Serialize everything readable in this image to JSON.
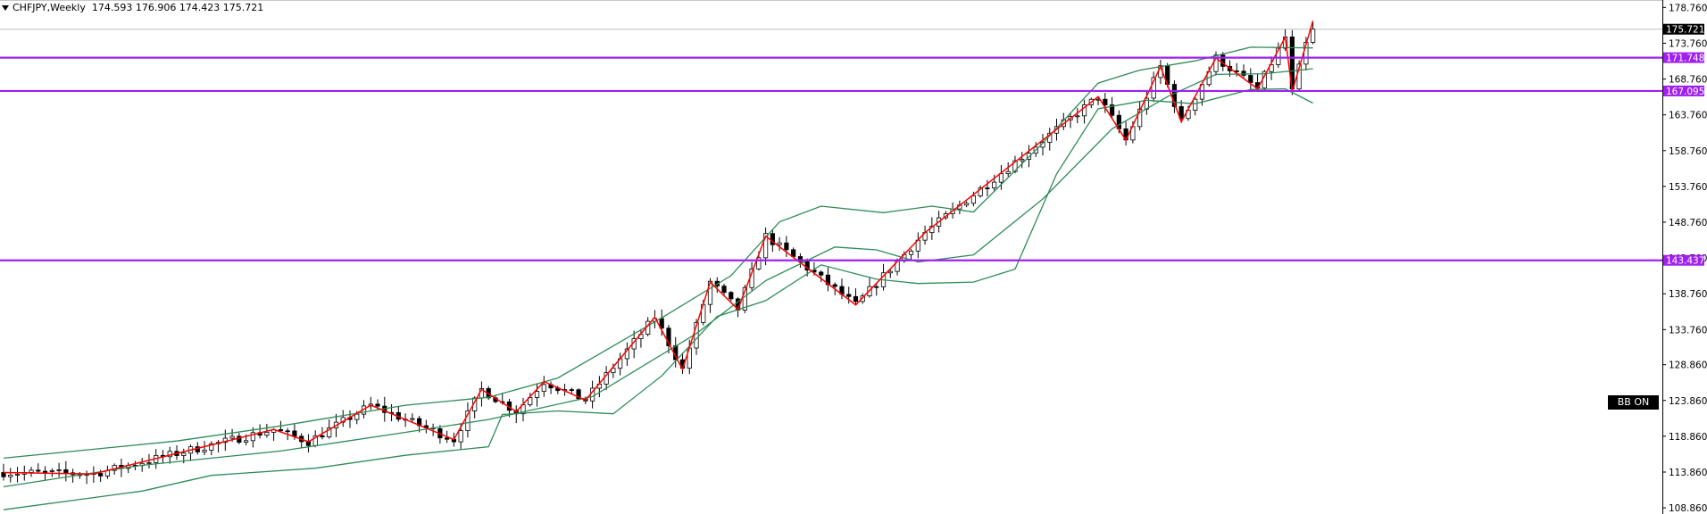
{
  "header": {
    "symbol": "CHFJPY,Weekly",
    "ohlc": "174.593 176.906 174.423 175.721"
  },
  "badge": {
    "label": "BB ON"
  },
  "chart_data": {
    "type": "candlestick",
    "y_axis_ticks": [
      "178.760",
      "173.760",
      "168.760",
      "163.760",
      "158.760",
      "153.760",
      "148.760",
      "143.760",
      "138.760",
      "133.760",
      "128.860",
      "123.860",
      "118.860",
      "113.860",
      "108.860"
    ],
    "ylim": [
      108.0,
      179.8
    ],
    "levels": [
      {
        "value": 171.748,
        "label": "171.748",
        "color": "#a020f0"
      },
      {
        "value": 167.095,
        "label": "167.095",
        "color": "#a020f0"
      },
      {
        "value": 143.437,
        "label": "143.437",
        "color": "#a020f0"
      }
    ],
    "last_price": {
      "value": 175.721,
      "label": "175.721"
    },
    "zigzag_pivots": [
      {
        "bar": 0,
        "price": 113.8
      },
      {
        "bar": 13,
        "price": 113.6
      },
      {
        "bar": 39,
        "price": 119.8
      },
      {
        "bar": 44,
        "price": 118.1
      },
      {
        "bar": 53,
        "price": 123.2
      },
      {
        "bar": 65,
        "price": 118.4
      },
      {
        "bar": 69,
        "price": 125.4
      },
      {
        "bar": 74,
        "price": 122.3
      },
      {
        "bar": 78,
        "price": 126.5
      },
      {
        "bar": 84,
        "price": 123.9
      },
      {
        "bar": 94,
        "price": 135.5
      },
      {
        "bar": 98,
        "price": 128.2
      },
      {
        "bar": 102,
        "price": 140.4
      },
      {
        "bar": 106,
        "price": 136.6
      },
      {
        "bar": 110,
        "price": 146.8
      },
      {
        "bar": 123,
        "price": 137.2
      },
      {
        "bar": 133,
        "price": 147.3
      },
      {
        "bar": 158,
        "price": 166.3
      },
      {
        "bar": 162,
        "price": 160.2
      },
      {
        "bar": 167,
        "price": 170.5
      },
      {
        "bar": 170,
        "price": 162.8
      },
      {
        "bar": 175,
        "price": 171.7
      },
      {
        "bar": 181,
        "price": 167.4
      },
      {
        "bar": 185,
        "price": 174.6
      },
      {
        "bar": 186,
        "price": 167.0
      },
      {
        "bar": 189,
        "price": 176.9
      }
    ],
    "bb_upper": [
      {
        "bar": 0,
        "price": 115.8
      },
      {
        "bar": 25,
        "price": 118.2
      },
      {
        "bar": 40,
        "price": 120.3
      },
      {
        "bar": 58,
        "price": 123.2
      },
      {
        "bar": 70,
        "price": 124.3
      },
      {
        "bar": 80,
        "price": 127.0
      },
      {
        "bar": 95,
        "price": 135.4
      },
      {
        "bar": 105,
        "price": 141.3
      },
      {
        "bar": 112,
        "price": 148.8
      },
      {
        "bar": 118,
        "price": 151.0
      },
      {
        "bar": 127,
        "price": 150.1
      },
      {
        "bar": 134,
        "price": 151.0
      },
      {
        "bar": 140,
        "price": 150.2
      },
      {
        "bar": 150,
        "price": 159.8
      },
      {
        "bar": 158,
        "price": 168.2
      },
      {
        "bar": 164,
        "price": 170.0
      },
      {
        "bar": 172,
        "price": 171.3
      },
      {
        "bar": 180,
        "price": 173.2
      },
      {
        "bar": 189,
        "price": 173.1
      }
    ],
    "bb_middle": [
      {
        "bar": 0,
        "price": 111.8
      },
      {
        "bar": 20,
        "price": 114.8
      },
      {
        "bar": 40,
        "price": 116.8
      },
      {
        "bar": 58,
        "price": 119.4
      },
      {
        "bar": 70,
        "price": 121.2
      },
      {
        "bar": 85,
        "price": 124.4
      },
      {
        "bar": 100,
        "price": 133.2
      },
      {
        "bar": 110,
        "price": 140.6
      },
      {
        "bar": 120,
        "price": 145.3
      },
      {
        "bar": 126,
        "price": 144.9
      },
      {
        "bar": 132,
        "price": 143.2
      },
      {
        "bar": 140,
        "price": 144.2
      },
      {
        "bar": 150,
        "price": 152.0
      },
      {
        "bar": 160,
        "price": 161.8
      },
      {
        "bar": 168,
        "price": 166.3
      },
      {
        "bar": 175,
        "price": 169.4
      },
      {
        "bar": 182,
        "price": 169.5
      },
      {
        "bar": 189,
        "price": 170.2
      }
    ],
    "bb_lower": [
      {
        "bar": 0,
        "price": 108.6
      },
      {
        "bar": 20,
        "price": 111.2
      },
      {
        "bar": 30,
        "price": 113.4
      },
      {
        "bar": 45,
        "price": 114.4
      },
      {
        "bar": 58,
        "price": 116.2
      },
      {
        "bar": 70,
        "price": 117.4
      },
      {
        "bar": 72,
        "price": 121.9
      },
      {
        "bar": 80,
        "price": 122.4
      },
      {
        "bar": 88,
        "price": 122.0
      },
      {
        "bar": 95,
        "price": 127.3
      },
      {
        "bar": 103,
        "price": 135.6
      },
      {
        "bar": 110,
        "price": 137.8
      },
      {
        "bar": 118,
        "price": 142.8
      },
      {
        "bar": 126,
        "price": 140.8
      },
      {
        "bar": 132,
        "price": 140.2
      },
      {
        "bar": 140,
        "price": 140.4
      },
      {
        "bar": 146,
        "price": 142.2
      },
      {
        "bar": 152,
        "price": 155.5
      },
      {
        "bar": 158,
        "price": 164.6
      },
      {
        "bar": 165,
        "price": 165.8
      },
      {
        "bar": 172,
        "price": 165.3
      },
      {
        "bar": 180,
        "price": 167.3
      },
      {
        "bar": 185,
        "price": 167.4
      },
      {
        "bar": 189,
        "price": 165.4
      }
    ],
    "bar_count": 190
  },
  "colors": {
    "level": "#a020f0",
    "zigzag": "#ff0000",
    "bands": "#2e8b57",
    "candle": "#000000",
    "background": "#ffffff",
    "badge_bg": "#000000"
  }
}
